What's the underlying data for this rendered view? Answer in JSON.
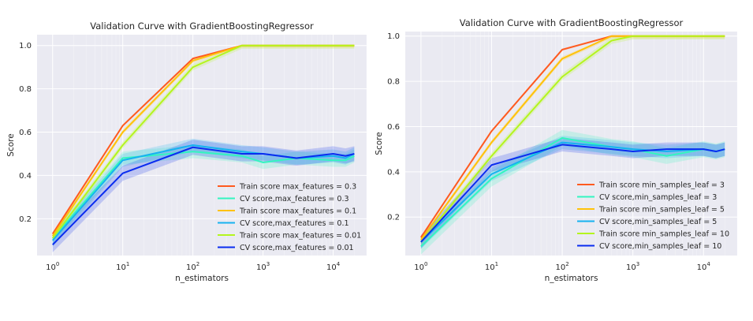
{
  "chart_data": [
    {
      "type": "line",
      "title": "Validation Curve with GradientBoostingRegressor",
      "xlabel": "n_estimators",
      "ylabel": "Score",
      "xscale": "log",
      "xlim": [
        0.6,
        30000
      ],
      "ylim": [
        0.03,
        1.05
      ],
      "xticks": [
        {
          "value": 1,
          "base": "10",
          "exp": "0"
        },
        {
          "value": 10,
          "base": "10",
          "exp": "1"
        },
        {
          "value": 100,
          "base": "10",
          "exp": "2"
        },
        {
          "value": 1000,
          "base": "10",
          "exp": "3"
        },
        {
          "value": 10000,
          "base": "10",
          "exp": "4"
        }
      ],
      "yticks": [
        {
          "value": 0.2,
          "label": "0.2"
        },
        {
          "value": 0.4,
          "label": "0.4"
        },
        {
          "value": 0.6,
          "label": "0.6"
        },
        {
          "value": 0.8,
          "label": "0.8"
        },
        {
          "value": 1.0,
          "label": "1.0"
        }
      ],
      "grid": true,
      "legend_position": "lower-right",
      "x": [
        1,
        10,
        100,
        500,
        1000,
        3000,
        10000,
        15000,
        20000
      ],
      "series": [
        {
          "name": "Train score max_features = 0.3",
          "color": "#ff5a1f",
          "values": [
            0.13,
            0.63,
            0.94,
            1.0,
            1.0,
            1.0,
            1.0,
            1.0,
            1.0
          ],
          "band": 0.005
        },
        {
          "name": "CV score,max_features = 0.3",
          "color": "#33f5c0",
          "values": [
            0.11,
            0.48,
            0.51,
            0.49,
            0.46,
            0.48,
            0.47,
            0.47,
            0.49
          ],
          "band": 0.03
        },
        {
          "name": "Train score max_features = 0.1",
          "color": "#ffc20a",
          "values": [
            0.12,
            0.6,
            0.93,
            1.0,
            1.0,
            1.0,
            1.0,
            1.0,
            1.0
          ],
          "band": 0.01
        },
        {
          "name": "CV score,max_features = 0.1",
          "color": "#17b2f0",
          "values": [
            0.1,
            0.47,
            0.54,
            0.51,
            0.5,
            0.48,
            0.49,
            0.48,
            0.5
          ],
          "band": 0.03
        },
        {
          "name": "Train score max_features = 0.01",
          "color": "#b4f51e",
          "values": [
            0.11,
            0.54,
            0.9,
            1.0,
            1.0,
            1.0,
            1.0,
            1.0,
            1.0
          ],
          "band": 0.015
        },
        {
          "name": "CV score,max_features = 0.01",
          "color": "#0a2cf0",
          "values": [
            0.08,
            0.41,
            0.53,
            0.5,
            0.5,
            0.48,
            0.5,
            0.49,
            0.5
          ],
          "band": 0.035
        }
      ]
    },
    {
      "type": "line",
      "title": "Validation Curve with GradientBoostingRegressor",
      "xlabel": "n_estimators",
      "ylabel": "Score",
      "xscale": "log",
      "xlim": [
        0.6,
        30000
      ],
      "ylim": [
        0.03,
        1.02
      ],
      "xticks": [
        {
          "value": 1,
          "base": "10",
          "exp": "0"
        },
        {
          "value": 10,
          "base": "10",
          "exp": "1"
        },
        {
          "value": 100,
          "base": "10",
          "exp": "2"
        },
        {
          "value": 1000,
          "base": "10",
          "exp": "3"
        },
        {
          "value": 10000,
          "base": "10",
          "exp": "4"
        }
      ],
      "yticks": [
        {
          "value": 0.2,
          "label": "0.2"
        },
        {
          "value": 0.4,
          "label": "0.4"
        },
        {
          "value": 0.6,
          "label": "0.6"
        },
        {
          "value": 0.8,
          "label": "0.8"
        },
        {
          "value": 1.0,
          "label": "1.0"
        }
      ],
      "grid": true,
      "legend_position": "lower-right",
      "x": [
        1,
        10,
        100,
        500,
        1000,
        3000,
        10000,
        15000,
        20000
      ],
      "series": [
        {
          "name": "Train score min_samples_leaf = 3",
          "color": "#ff5a1f",
          "values": [
            0.11,
            0.58,
            0.94,
            1.0,
            1.0,
            1.0,
            1.0,
            1.0,
            1.0
          ],
          "band": 0.005
        },
        {
          "name": "CV score,min_samples_leaf = 3",
          "color": "#33f5c0",
          "values": [
            0.07,
            0.37,
            0.55,
            0.51,
            0.5,
            0.47,
            0.5,
            0.49,
            0.5
          ],
          "band": 0.035
        },
        {
          "name": "Train score min_samples_leaf = 5",
          "color": "#ffc20a",
          "values": [
            0.1,
            0.53,
            0.9,
            1.0,
            1.0,
            1.0,
            1.0,
            1.0,
            1.0
          ],
          "band": 0.01
        },
        {
          "name": "CV score,min_samples_leaf = 5",
          "color": "#17b2f0",
          "values": [
            0.09,
            0.39,
            0.53,
            0.51,
            0.5,
            0.49,
            0.5,
            0.49,
            0.5
          ],
          "band": 0.03
        },
        {
          "name": "Train score min_samples_leaf = 10",
          "color": "#b4f51e",
          "values": [
            0.09,
            0.47,
            0.82,
            0.98,
            1.0,
            1.0,
            1.0,
            1.0,
            1.0
          ],
          "band": 0.015
        },
        {
          "name": "CV score,min_samples_leaf = 10",
          "color": "#0a2cf0",
          "values": [
            0.09,
            0.43,
            0.52,
            0.5,
            0.49,
            0.5,
            0.5,
            0.49,
            0.5
          ],
          "band": 0.03
        }
      ]
    }
  ]
}
